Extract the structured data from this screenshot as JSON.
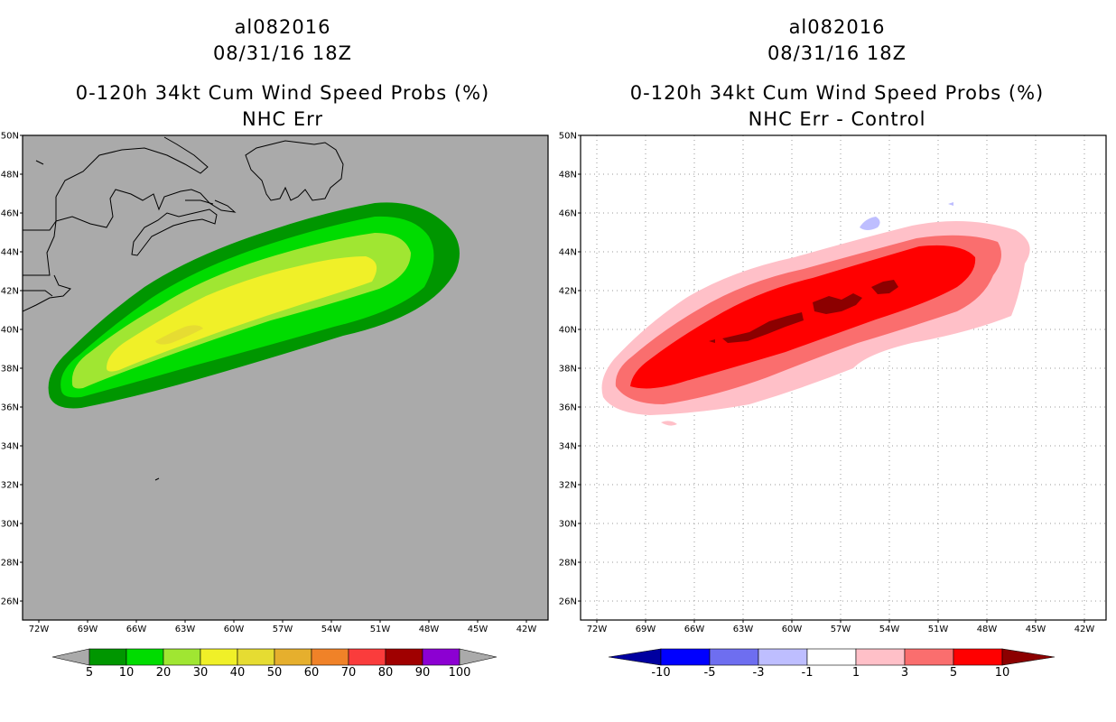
{
  "left_panel": {
    "storm_id": "al082016",
    "datetime": "08/31/16 18Z",
    "product": "0-120h 34kt Cum Wind Speed Probs (%)",
    "subtitle": "NHC Err",
    "colorbar_labels": [
      "5",
      "10",
      "20",
      "30",
      "40",
      "50",
      "60",
      "70",
      "80",
      "90",
      "100"
    ],
    "colorbar_colors": [
      "#009600",
      "#00dc00",
      "#a0e632",
      "#f0f028",
      "#e6dc32",
      "#e6af2d",
      "#f08228",
      "#fa3c3c",
      "#a00000",
      "#8c00d2"
    ],
    "background_color": "#aaaaaa"
  },
  "right_panel": {
    "storm_id": "al082016",
    "datetime": "08/31/16 18Z",
    "product": "0-120h 34kt Cum Wind Speed Probs (%)",
    "subtitle": "NHC Err - Control",
    "colorbar_labels": [
      "-10",
      "-5",
      "-3",
      "-1",
      "1",
      "3",
      "5",
      "10"
    ],
    "colorbar_colors": [
      "#0000a0",
      "#0000ff",
      "#6e6ef0",
      "#bebeff",
      "#ffffff",
      "#ffc0c8",
      "#fa6e6e",
      "#ff0000",
      "#8c0000"
    ],
    "background_color": "#ffffff"
  },
  "axes": {
    "lat_labels": [
      "50N",
      "48N",
      "46N",
      "44N",
      "42N",
      "40N",
      "38N",
      "36N",
      "34N",
      "32N",
      "30N",
      "28N",
      "26N"
    ],
    "lon_labels": [
      "72W",
      "69W",
      "66W",
      "63W",
      "60W",
      "57W",
      "54W",
      "51W",
      "48W",
      "45W",
      "42W"
    ]
  }
}
